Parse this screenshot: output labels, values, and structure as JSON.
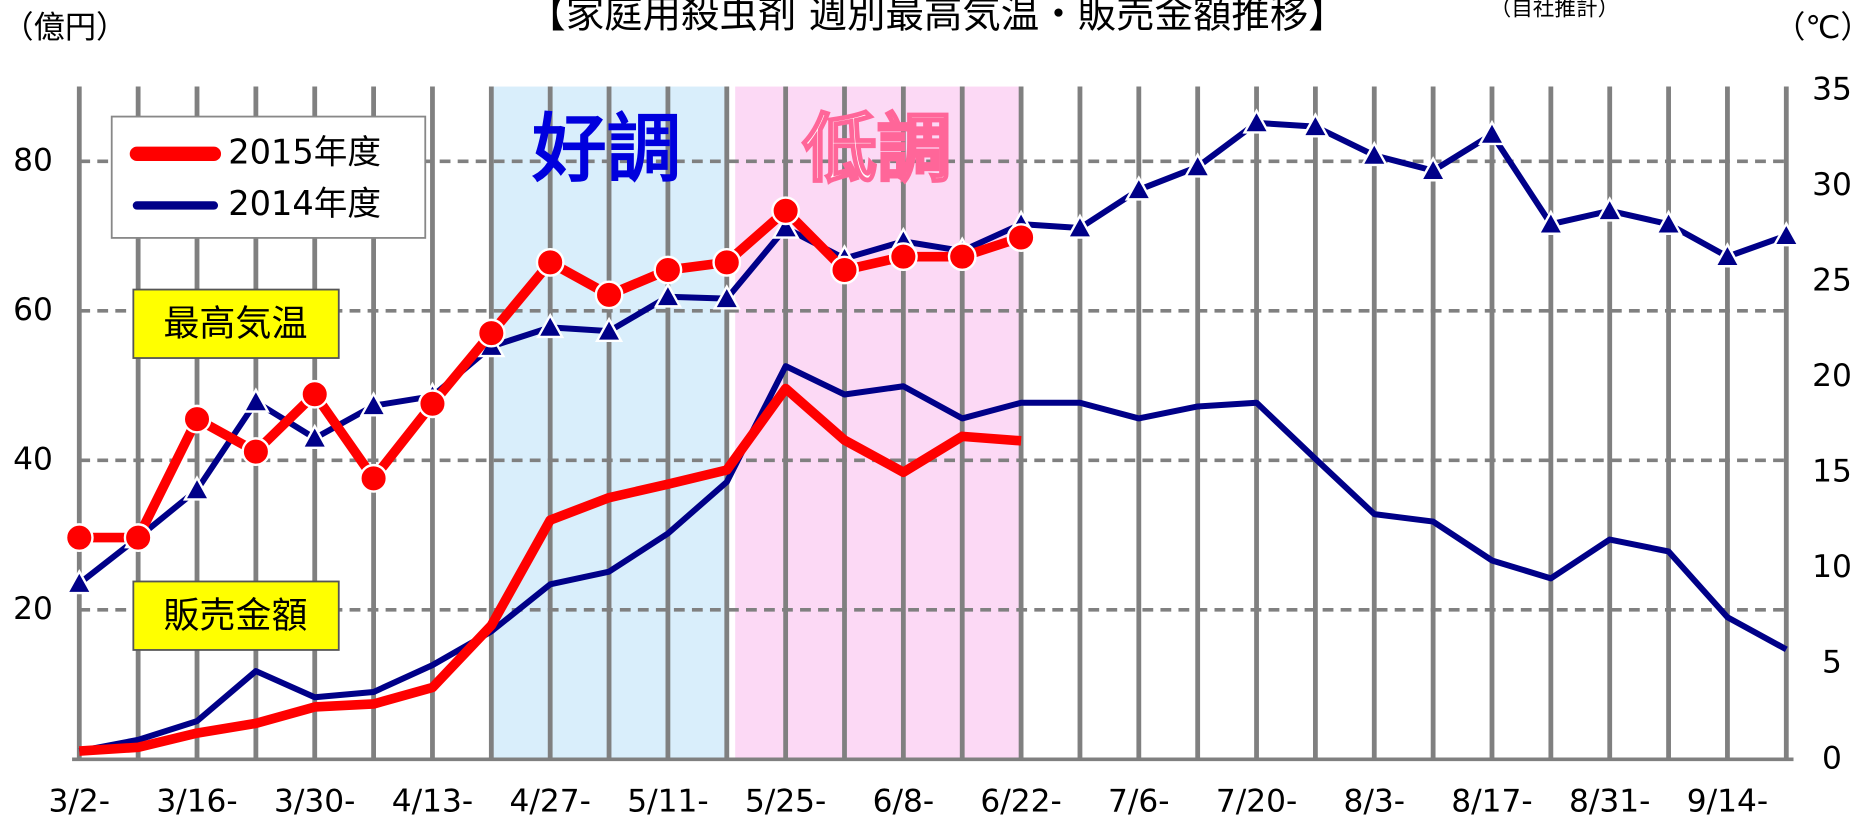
{
  "chart_data": {
    "type": "line",
    "title": "【家庭用殺虫剤 週別最高気温・販売金額推移】",
    "subtitle": "（自社推計）",
    "y_label": "（億円）",
    "y2_label": "（℃）",
    "categories": [
      "3/2-",
      null,
      "3/16-",
      null,
      "3/30-",
      null,
      "4/13-",
      null,
      "4/27-",
      null,
      "5/11-",
      null,
      "5/25-",
      null,
      "6/8-",
      null,
      "6/22-",
      null,
      "7/6-",
      null,
      "7/20-",
      null,
      "8/3-",
      null,
      "8/17-",
      null,
      "8/31-",
      null,
      "9/14-",
      null
    ],
    "series": [
      {
        "name": "2014年度",
        "color": "#000088",
        "values": [
          1.1,
          2.6,
          5.1,
          11.8,
          8.3,
          9.0,
          12.6,
          17.1,
          23.4,
          25.1,
          30.2,
          37.1,
          52.6,
          48.8,
          49.9,
          45.6,
          47.7,
          47.7,
          45.6,
          47.2,
          47.7,
          40.2,
          32.8,
          31.8,
          26.6,
          24.2,
          29.4,
          27.8,
          19.0,
          14.7
        ]
      },
      {
        "name": "2015年度",
        "color": "#ff0000",
        "values": [
          1.1,
          1.6,
          3.5,
          4.8,
          7.0,
          7.4,
          9.6,
          17.9,
          32.0,
          35.0,
          36.8,
          38.7,
          49.6,
          42.7,
          38.4,
          43.2,
          42.6,
          null,
          null,
          null,
          null,
          null,
          null,
          null,
          null,
          null,
          null,
          null,
          null,
          null
        ]
      },
      {
        "color": "#000088",
        "axis": "y2",
        "marker": "triangle",
        "values": [
          9.2,
          11.6,
          14.1,
          18.7,
          16.8,
          18.5,
          19.0,
          21.6,
          22.6,
          22.4,
          24.2,
          24.1,
          27.8,
          26.2,
          27.1,
          26.6,
          28.0,
          27.8,
          29.8,
          31.0,
          33.3,
          33.1,
          31.6,
          30.8,
          32.7,
          28.0,
          28.7,
          28.0,
          26.3,
          27.4
        ]
      },
      {
        "color": "#ff0000",
        "axis": "y2",
        "marker": "circle",
        "values": [
          11.6,
          11.6,
          17.8,
          16.1,
          19.1,
          14.7,
          18.6,
          22.3,
          26.0,
          24.3,
          25.6,
          26.0,
          28.7,
          25.6,
          26.3,
          26.3,
          27.3,
          null,
          null,
          null,
          null,
          null,
          null,
          null,
          null,
          null,
          null,
          null,
          null,
          null
        ]
      }
    ],
    "ylim": [
      0,
      90
    ],
    "yticks": [
      20,
      40,
      60,
      80
    ],
    "y2lim": [
      0,
      35.2
    ],
    "y2ticks": [
      0,
      5,
      10,
      15,
      20,
      25,
      30,
      35
    ],
    "grid": true,
    "legend": "upper left",
    "annotations": [
      "好調",
      "低調",
      "最高気温",
      "販売金額"
    ]
  }
}
